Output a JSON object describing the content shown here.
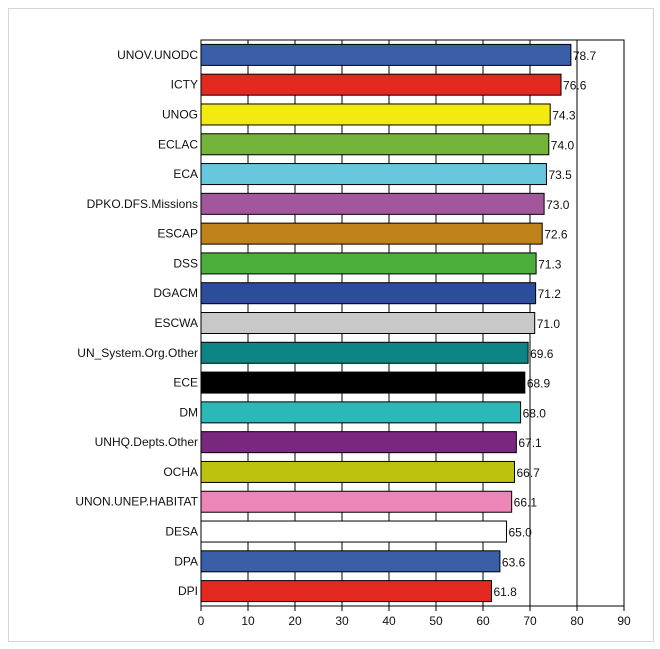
{
  "chart_data": {
    "type": "bar",
    "orientation": "horizontal",
    "title": "",
    "xlabel": "",
    "ylabel": "",
    "xlim": [
      0,
      90
    ],
    "x_ticks": [
      0,
      10,
      20,
      30,
      40,
      50,
      60,
      70,
      80,
      90
    ],
    "grid": "vertical",
    "legend": "none",
    "categories": [
      "UNOV.UNODC",
      "ICTY",
      "UNOG",
      "ECLAC",
      "ECA",
      "DPKO.DFS.Missions",
      "ESCAP",
      "DSS",
      "DGACM",
      "ESCWA",
      "UN_System.Org.Other",
      "ECE",
      "DM",
      "UNHQ.Depts.Other",
      "OCHA",
      "UNON.UNEP.HABITAT",
      "DESA",
      "DPA",
      "DPI"
    ],
    "values": [
      78.7,
      76.6,
      74.3,
      74.0,
      73.5,
      73.0,
      72.6,
      71.3,
      71.2,
      71.0,
      69.6,
      68.9,
      68.0,
      67.1,
      66.7,
      66.1,
      65.0,
      63.6,
      61.8
    ],
    "value_labels": [
      "78.7",
      "76.6",
      "74.3",
      "74.0",
      "73.5",
      "73.0",
      "72.6",
      "71.3",
      "71.2",
      "71.0",
      "69.6",
      "68.9",
      "68.0",
      "67.1",
      "66.7",
      "66.1",
      "65.0",
      "63.6",
      "61.8"
    ],
    "colors": [
      "#3a5ea8",
      "#e3281f",
      "#f2ea10",
      "#74b43a",
      "#69c6df",
      "#a2569c",
      "#c0821a",
      "#4cae3b",
      "#2b4d9b",
      "#c8c8c8",
      "#0e8585",
      "#000000",
      "#2db8b8",
      "#7a2780",
      "#bcc20e",
      "#ed86b8",
      "#ffffff",
      "#3a5ea8",
      "#e3281f"
    ]
  }
}
